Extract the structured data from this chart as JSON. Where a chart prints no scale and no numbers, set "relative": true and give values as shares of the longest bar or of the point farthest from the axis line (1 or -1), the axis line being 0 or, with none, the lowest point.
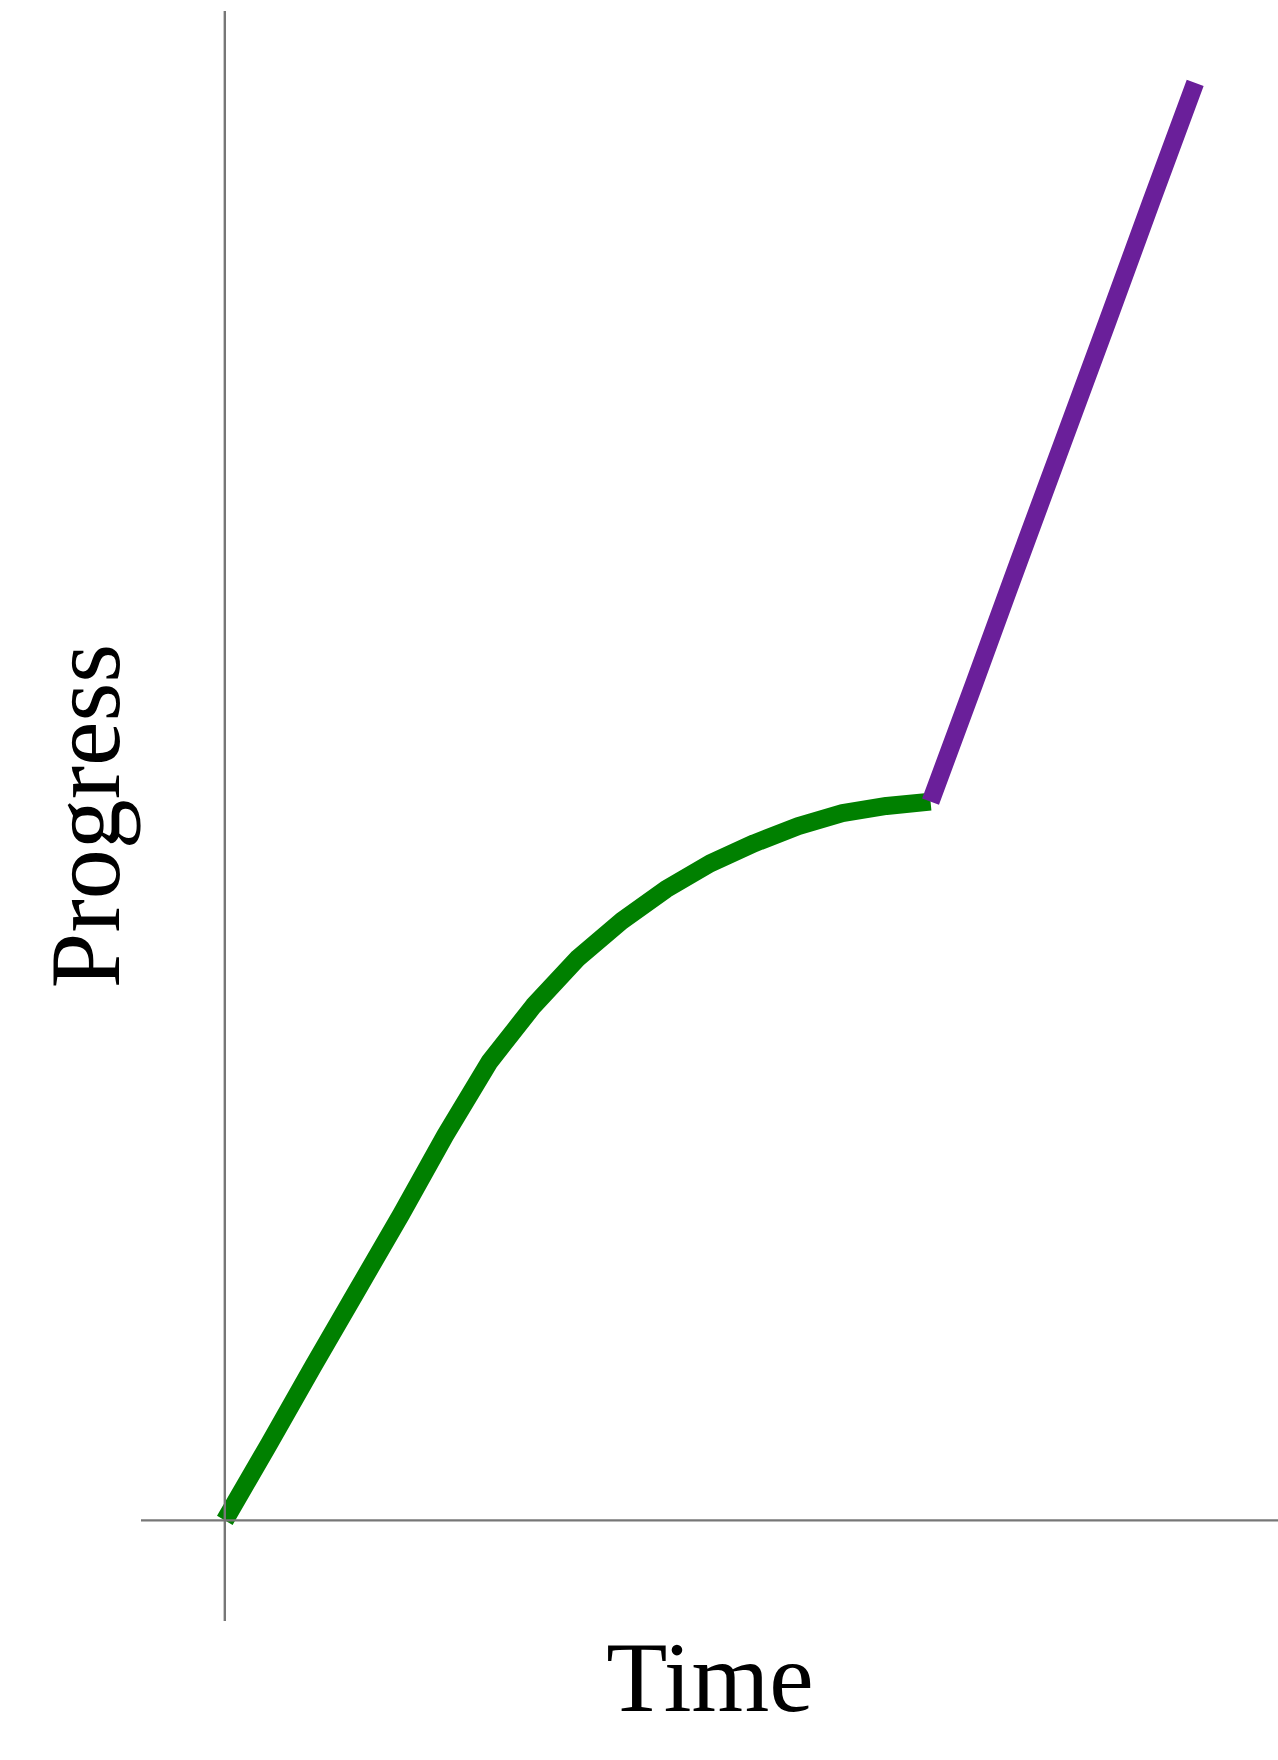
{
  "chart_data": {
    "type": "line",
    "relative": true,
    "xlabel": "Time",
    "ylabel": "Progress",
    "line_style": "solid",
    "marker": "none",
    "categories": [
      null,
      null,
      null,
      null,
      null,
      null,
      null,
      null,
      null,
      null,
      null,
      null,
      null,
      null,
      null,
      null,
      null,
      null,
      null,
      null,
      null,
      null,
      null
    ],
    "series": [
      {
        "color": "#008000",
        "values": [
          0,
          0.053,
          0.107,
          0.16,
          0.213,
          0.268,
          0.319,
          0.358,
          0.391,
          0.417,
          0.439,
          0.457,
          0.471,
          0.483,
          0.492,
          0.497,
          0.5,
          null,
          null,
          null,
          null,
          null,
          null
        ]
      },
      {
        "color": "#6a1f9a",
        "values": [
          null,
          null,
          null,
          null,
          null,
          null,
          null,
          null,
          null,
          null,
          null,
          null,
          null,
          null,
          null,
          null,
          0.5,
          0.583,
          0.667,
          0.75,
          0.833,
          0.917,
          1.0
        ]
      }
    ]
  }
}
